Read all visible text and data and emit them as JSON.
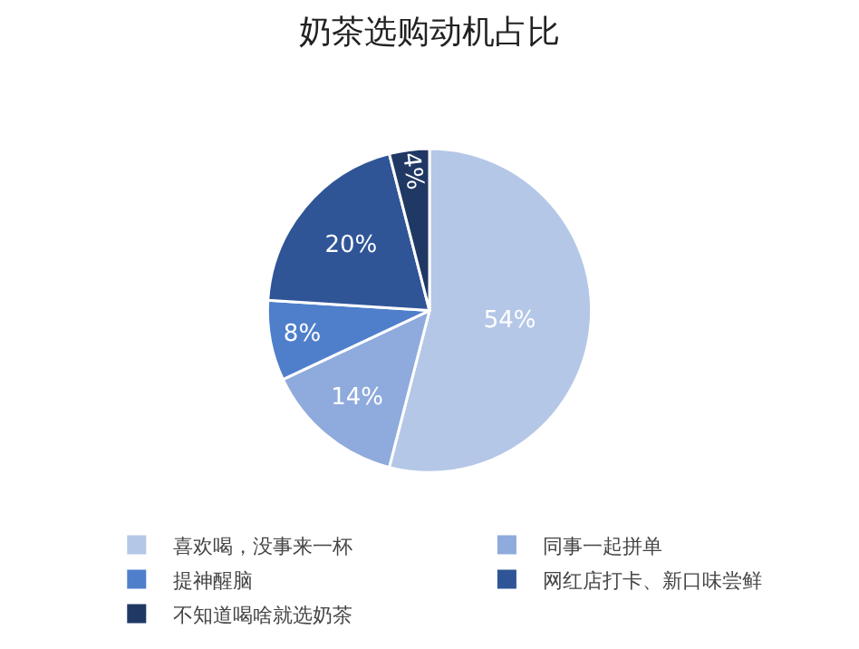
{
  "chart_data": {
    "type": "pie",
    "title": "奶茶选购动机占比",
    "categories": [
      "喜欢喝，没事来一杯",
      "同事一起拼单",
      "提神醒脑",
      "网红店打卡、新口味尝鲜",
      "不知道喝啥就选奶茶"
    ],
    "values": [
      54,
      14,
      8,
      20,
      4
    ],
    "value_labels": [
      "54%",
      "14%",
      "8%",
      "20%",
      "4%"
    ],
    "colors": [
      "#b4c7e7",
      "#8faadc",
      "#4f7fcb",
      "#2f5597",
      "#203864"
    ],
    "legend": "bottom"
  }
}
